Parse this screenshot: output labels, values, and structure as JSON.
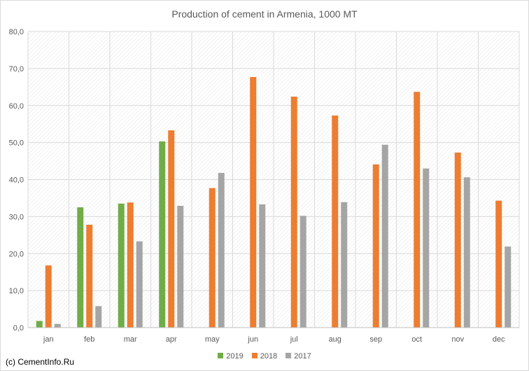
{
  "chart_data": {
    "type": "bar",
    "title": "Production of cement in Armenia, 1000 MT",
    "xlabel": "",
    "ylabel": "",
    "categories": [
      "jan",
      "feb",
      "mar",
      "apr",
      "may",
      "jun",
      "jul",
      "aug",
      "sep",
      "oct",
      "nov",
      "dec"
    ],
    "ylim": [
      0,
      80
    ],
    "ytick_values": [
      0,
      10,
      20,
      30,
      40,
      50,
      60,
      70,
      80
    ],
    "ytick_labels": [
      "0,0",
      "10,0",
      "20,0",
      "30,0",
      "40,0",
      "50,0",
      "60,0",
      "70,0",
      "80,0"
    ],
    "grid": true,
    "legend_position": "bottom",
    "series": [
      {
        "name": "2019",
        "color": "#70ad47",
        "values": [
          1.8,
          32.5,
          33.5,
          50.3,
          null,
          null,
          null,
          null,
          null,
          null,
          null,
          null
        ]
      },
      {
        "name": "2018",
        "color": "#ed7d31",
        "values": [
          16.8,
          27.8,
          33.8,
          53.3,
          37.7,
          67.7,
          62.4,
          57.3,
          44.1,
          63.7,
          47.3,
          34.3
        ]
      },
      {
        "name": "2017",
        "color": "#a5a5a5",
        "values": [
          1.0,
          5.8,
          23.3,
          32.9,
          41.8,
          33.3,
          30.2,
          33.9,
          49.4,
          43.0,
          40.6,
          21.9
        ]
      }
    ]
  },
  "footer": {
    "copyright": "(c) CementInfo.Ru"
  }
}
